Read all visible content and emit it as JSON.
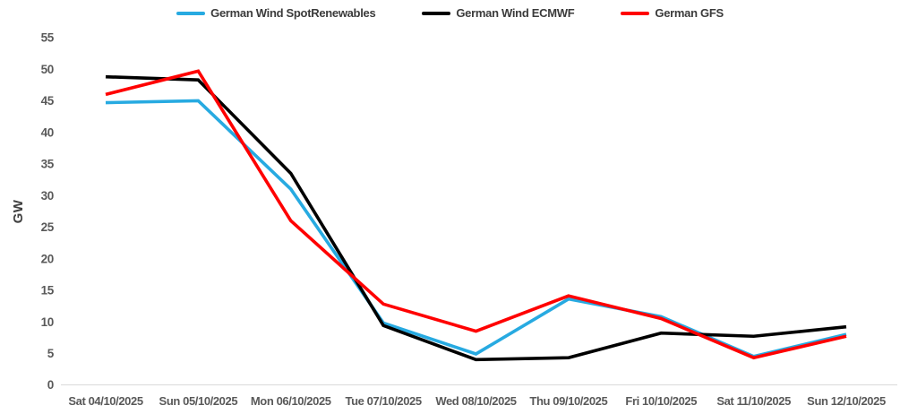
{
  "chart_data": {
    "type": "line",
    "title": "",
    "xlabel": "",
    "ylabel": "GW",
    "ylim": [
      0,
      55
    ],
    "ytick_step": 5,
    "grid": false,
    "legend_position": "top",
    "axis_color": "#D9D9D9",
    "tick_label_color": "#595959",
    "categories": [
      "Sat 04/10/2025",
      "Sun 05/10/2025",
      "Mon 06/10/2025",
      "Tue 07/10/2025",
      "Wed 08/10/2025",
      "Thu 09/10/2025",
      "Fri 10/10/2025",
      "Sat 11/10/2025",
      "Sun 12/10/2025"
    ],
    "series": [
      {
        "name": "German Wind SpotRenewables",
        "color": "#27AAE1",
        "values": [
          44.7,
          45.0,
          31.0,
          9.8,
          4.9,
          13.6,
          10.8,
          4.5,
          8.0
        ]
      },
      {
        "name": "German Wind ECMWF",
        "color": "#000000",
        "values": [
          48.8,
          48.3,
          33.5,
          9.4,
          4.0,
          4.3,
          8.2,
          7.7,
          9.2
        ]
      },
      {
        "name": "German GFS",
        "color": "#FF0000",
        "values": [
          46.0,
          49.7,
          26.0,
          12.8,
          8.5,
          14.1,
          10.5,
          4.3,
          7.7
        ]
      }
    ]
  }
}
